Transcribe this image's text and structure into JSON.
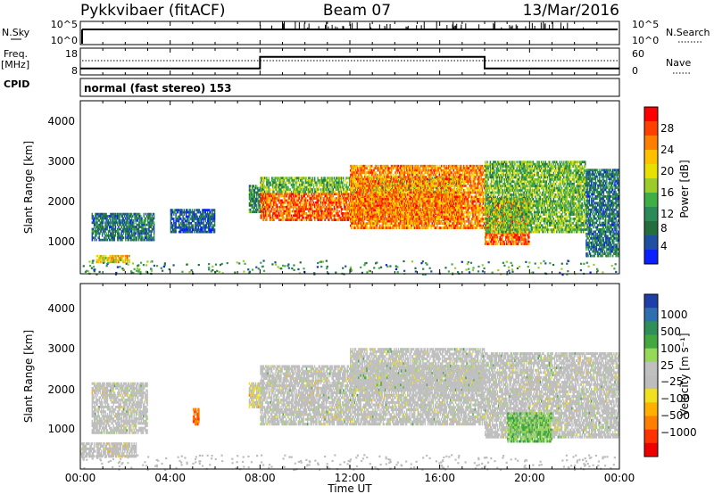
{
  "header": {
    "station": "Pykkvibaer (fitACF)",
    "beam": "Beam 07",
    "date": "13/Mar/2016"
  },
  "strips": {
    "nsky_label": "N.Sky",
    "nsky_ticks": [
      "10^5",
      "10^0"
    ],
    "nsearch_label": "N.Search",
    "nsearch_ticks": [
      "10^5",
      "10^0"
    ],
    "freq_label_line1": "Freq.",
    "freq_label_line2": "[MHz]",
    "freq_ticks": [
      "18",
      "8"
    ],
    "nave_label": "Nave",
    "nave_ticks": [
      "60",
      "0"
    ],
    "cpid_label": "CPID",
    "cpid_text": "normal (fast stereo) 153",
    "nave_steps": [
      {
        "from_hour": 0,
        "to_hour": 8,
        "value": 12
      },
      {
        "from_hour": 8,
        "to_hour": 18,
        "value": 42
      },
      {
        "from_hour": 18,
        "to_hour": 24,
        "value": 12
      }
    ]
  },
  "chart_data": [
    {
      "type": "heatmap",
      "name": "power",
      "ylabel": "Slant Range [km]",
      "yticks": [
        "4000",
        "3000",
        "2000",
        "1000"
      ],
      "ylim": [
        180,
        4500
      ],
      "colorbar_label": "Power [dB]",
      "colorbar_ticks": [
        "28",
        "24",
        "20",
        "16",
        "12",
        "8",
        "4"
      ],
      "colorbar_colors": [
        "#ff0000",
        "#ff4000",
        "#ff8000",
        "#ffc000",
        "#e8e000",
        "#9ccc2a",
        "#3fae44",
        "#2c8a58",
        "#226e3c",
        "#1e4fa0",
        "#0a20ff"
      ],
      "bands": [
        {
          "t0": 0.7,
          "t1": 2.2,
          "r0": 450,
          "r1": 650,
          "v": 20
        },
        {
          "t0": 0.5,
          "t1": 3.3,
          "r0": 1000,
          "r1": 1700,
          "v": 8
        },
        {
          "t0": 4.0,
          "t1": 6.0,
          "r0": 1200,
          "r1": 1800,
          "v": 6
        },
        {
          "t0": 7.5,
          "t1": 8.2,
          "r0": 1700,
          "r1": 2400,
          "v": 10
        },
        {
          "t0": 8.0,
          "t1": 17.0,
          "r0": 1500,
          "r1": 2200,
          "v": 26
        },
        {
          "t0": 8.0,
          "t1": 17.0,
          "r0": 2200,
          "r1": 2600,
          "v": 14
        },
        {
          "t0": 12.0,
          "t1": 18.0,
          "r0": 1300,
          "r1": 2900,
          "v": 24
        },
        {
          "t0": 18.0,
          "t1": 20.0,
          "r0": 900,
          "r1": 2100,
          "v": 26
        },
        {
          "t0": 18.0,
          "t1": 22.5,
          "r0": 1200,
          "r1": 3000,
          "v": 14
        },
        {
          "t0": 22.5,
          "t1": 24.0,
          "r0": 600,
          "r1": 2800,
          "v": 8
        }
      ]
    },
    {
      "type": "heatmap",
      "name": "velocity",
      "ylabel": "Slant Range [km]",
      "yticks": [
        "4000",
        "3000",
        "2000",
        "1000"
      ],
      "ylim": [
        180,
        4500
      ],
      "colorbar_label": "Velocity [m s⁻¹]",
      "colorbar_ticks": [
        "1000",
        "500",
        "100",
        "25",
        "−25",
        "−100",
        "−500",
        "−1000"
      ],
      "colorbar_colors": [
        "#1f3fa8",
        "#2e6fb0",
        "#2f8f59",
        "#43a83f",
        "#96d85a",
        "#c0c0c0",
        "#bdbdbd",
        "#f0e020",
        "#ffb000",
        "#ff7f00",
        "#ff3300",
        "#ee0000"
      ],
      "bands": [
        {
          "t0": 0.0,
          "t1": 2.5,
          "r0": 450,
          "r1": 800,
          "v": -150
        },
        {
          "t0": 0.5,
          "t1": 3.0,
          "r0": 1000,
          "r1": 2200,
          "v": 0
        },
        {
          "t0": 5.0,
          "t1": 5.3,
          "r0": 1200,
          "r1": 1600,
          "v": -800
        },
        {
          "t0": 7.5,
          "t1": 8.1,
          "r0": 1600,
          "r1": 2200,
          "v": -200
        },
        {
          "t0": 8.0,
          "t1": 18.0,
          "r0": 1200,
          "r1": 2600,
          "v": 0
        },
        {
          "t0": 12.0,
          "t1": 18.0,
          "r0": 2000,
          "r1": 3000,
          "v": 60
        },
        {
          "t0": 18.0,
          "t1": 24.0,
          "r0": 900,
          "r1": 2900,
          "v": 0
        },
        {
          "t0": 19.0,
          "t1": 21.0,
          "r0": 800,
          "r1": 1500,
          "v": 400
        }
      ]
    }
  ],
  "xaxis": {
    "ticks": [
      "00:00",
      "04:00",
      "08:00",
      "12:00",
      "16:00",
      "20:00",
      "00:00"
    ],
    "label": "Time UT",
    "range_hours": [
      0,
      24
    ]
  }
}
